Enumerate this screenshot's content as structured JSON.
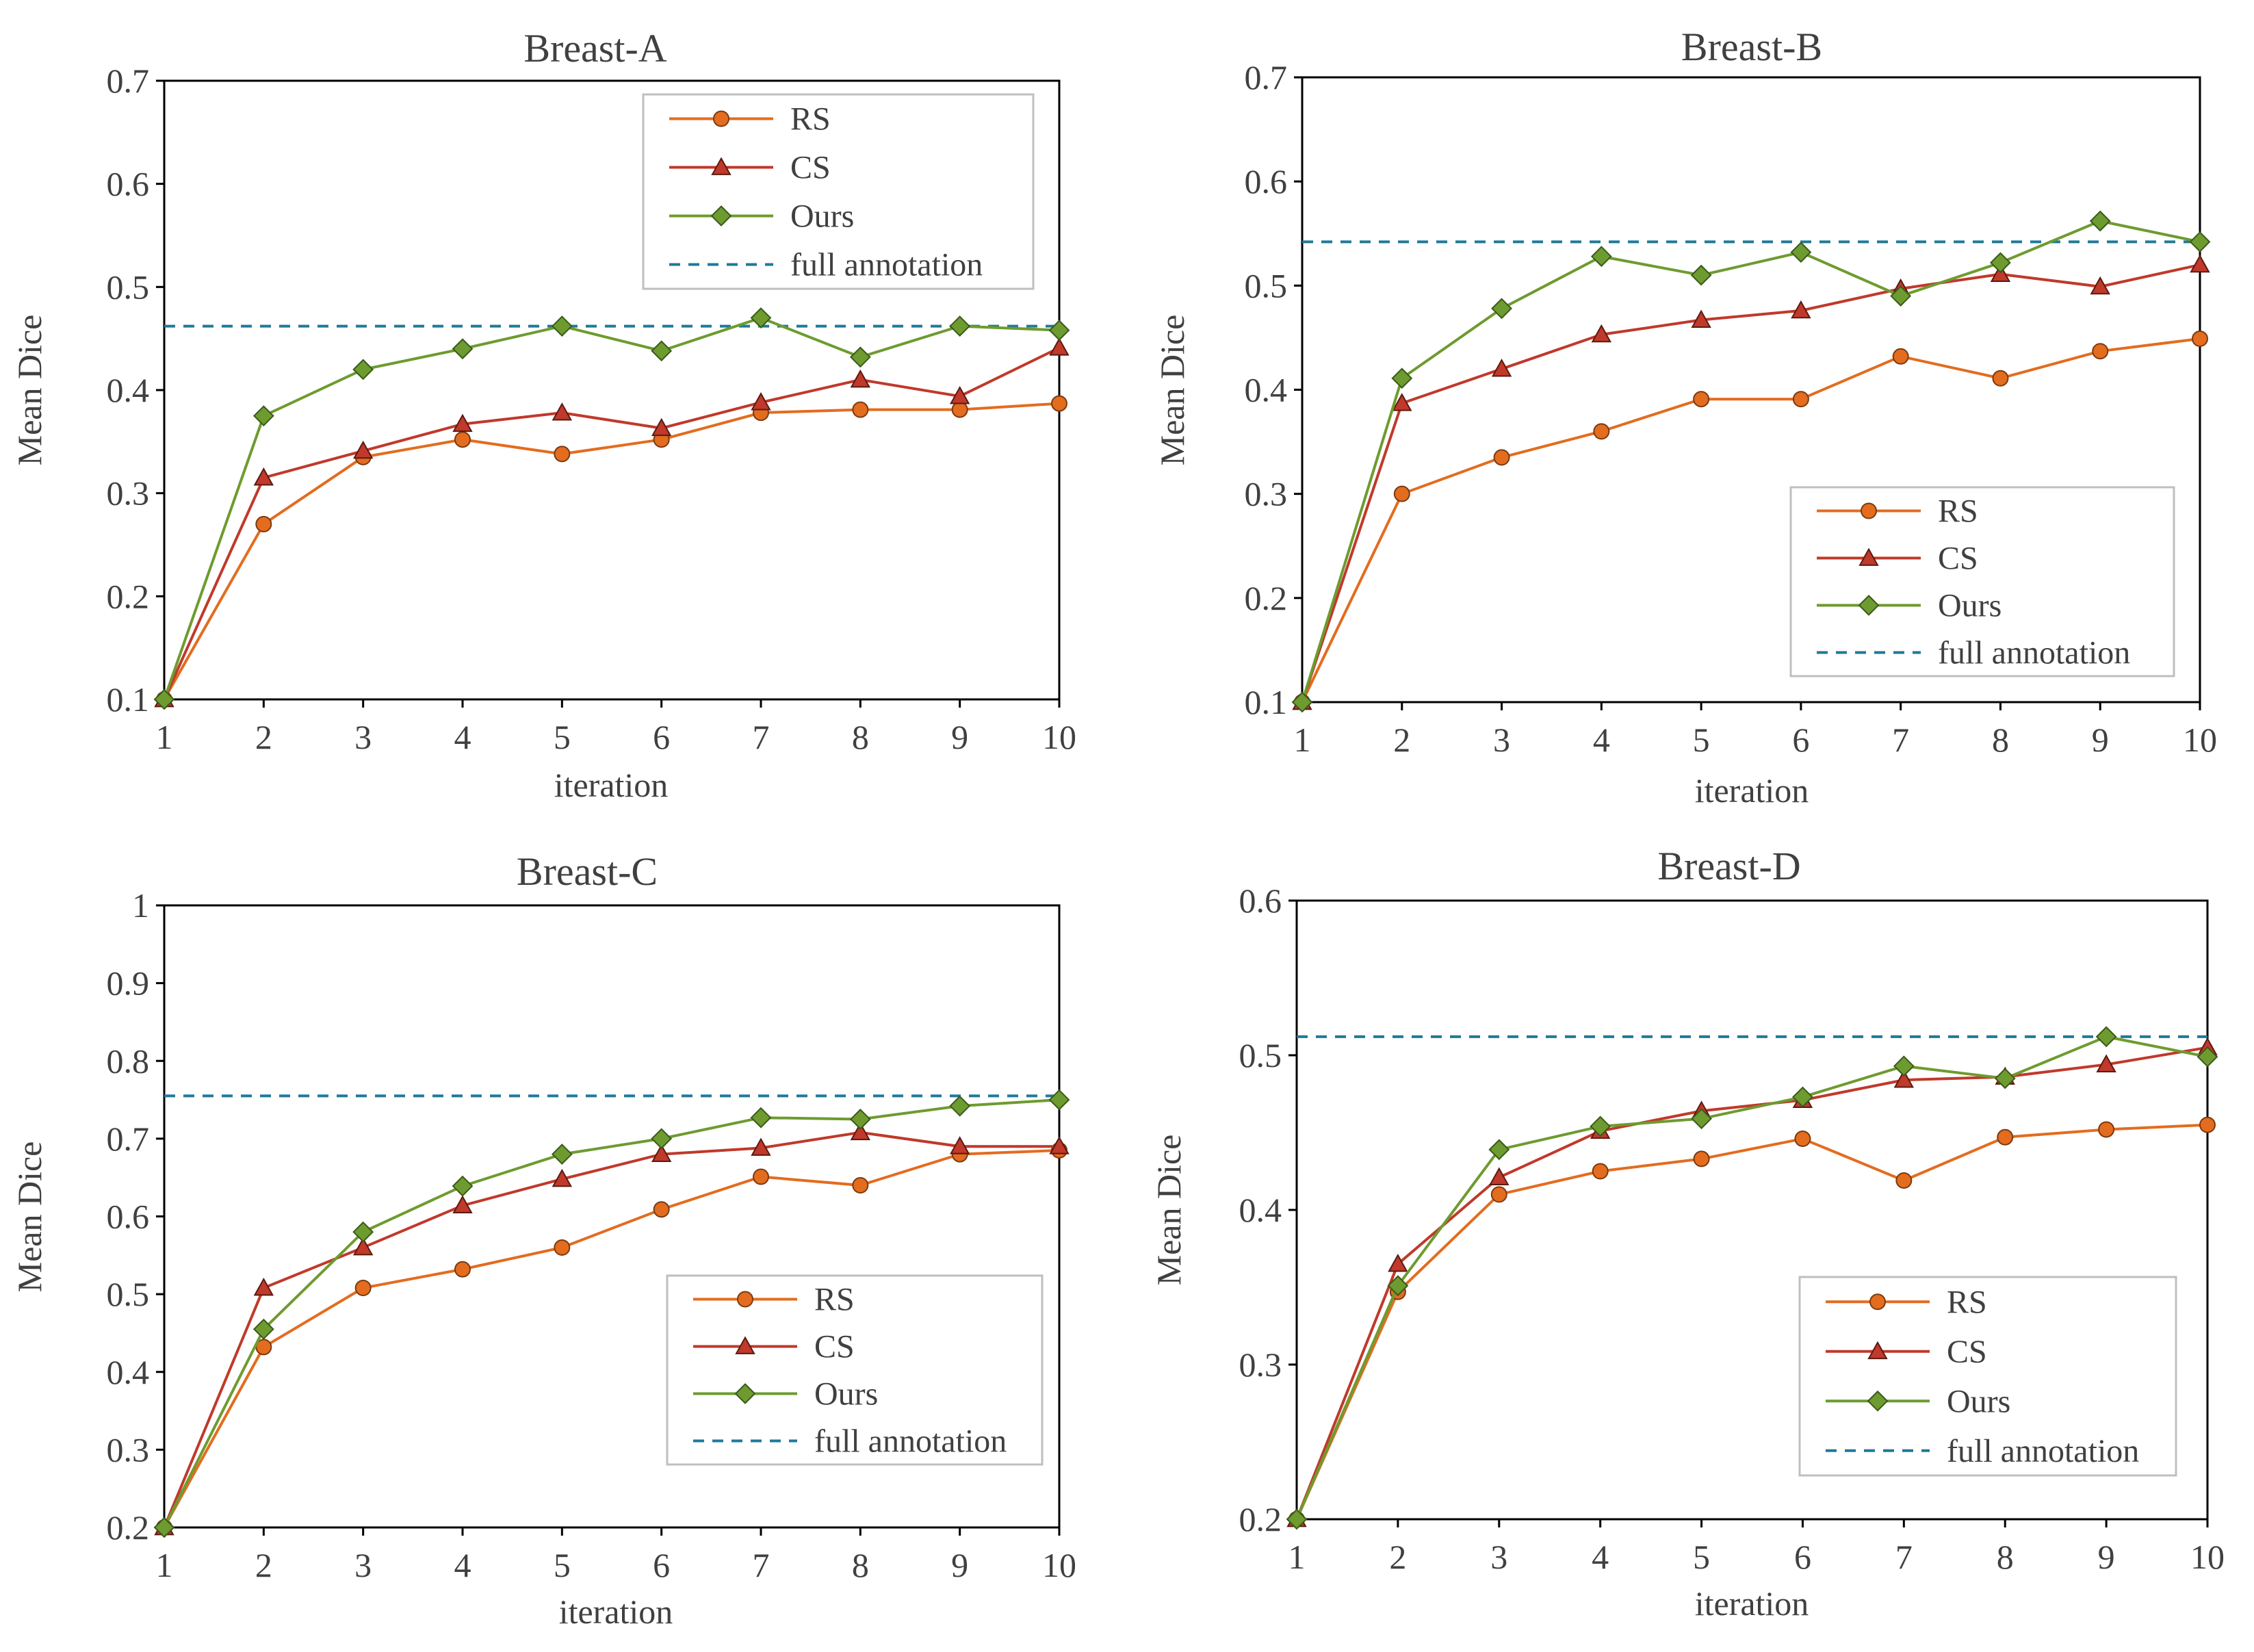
{
  "colors": {
    "RS": "#E36C1F",
    "CS": "#C0392B",
    "Ours": "#6E9B2F",
    "full": "#1F7A99",
    "rs_alt": "#C0504D"
  },
  "chart_data": [
    {
      "type": "line",
      "title": "Breast-A",
      "xlabel": "iteration",
      "ylabel": "Mean Dice",
      "ylim": [
        0.1,
        0.7
      ],
      "yticks": [
        "0.1",
        "0.2",
        "0.3",
        "0.4",
        "0.5",
        "0.6",
        "0.7"
      ],
      "x": [
        1,
        2,
        3,
        4,
        5,
        6,
        7,
        8,
        9,
        10
      ],
      "legend_position": "top-right",
      "series": [
        {
          "name": "RS",
          "values": [
            0.1,
            0.27,
            0.335,
            0.352,
            0.338,
            0.352,
            0.378,
            0.381,
            0.381,
            0.387
          ]
        },
        {
          "name": "CS",
          "values": [
            0.1,
            0.315,
            0.341,
            0.367,
            0.378,
            0.363,
            0.388,
            0.41,
            0.394,
            0.441
          ]
        },
        {
          "name": "Ours",
          "values": [
            0.1,
            0.375,
            0.42,
            0.44,
            0.462,
            0.438,
            0.47,
            0.432,
            0.462,
            0.458
          ]
        }
      ],
      "reference": {
        "name": "full annotation",
        "value": 0.462
      }
    },
    {
      "type": "line",
      "title": "Breast-B",
      "xlabel": "iteration",
      "ylabel": "Mean Dice",
      "ylim": [
        0.1,
        0.7
      ],
      "yticks": [
        "0.1",
        "0.2",
        "0.3",
        "0.4",
        "0.5",
        "0.6",
        "0.7"
      ],
      "x": [
        1,
        2,
        3,
        4,
        5,
        6,
        7,
        8,
        9,
        10
      ],
      "legend_position": "bottom-right",
      "series": [
        {
          "name": "RS",
          "values": [
            0.1,
            0.3,
            0.335,
            0.36,
            0.391,
            0.391,
            0.432,
            0.411,
            0.437,
            0.449
          ]
        },
        {
          "name": "CS",
          "values": [
            0.1,
            0.387,
            0.42,
            0.453,
            0.467,
            0.476,
            0.497,
            0.511,
            0.499,
            0.52
          ]
        },
        {
          "name": "Ours",
          "values": [
            0.1,
            0.411,
            0.478,
            0.528,
            0.51,
            0.532,
            0.49,
            0.522,
            0.562,
            0.542
          ]
        }
      ],
      "reference": {
        "name": "full annotation",
        "value": 0.542
      }
    },
    {
      "type": "line",
      "title": "Breast-C",
      "xlabel": "iteration",
      "ylabel": "Mean Dice",
      "ylim": [
        0.2,
        1.0
      ],
      "yticks": [
        "0.2",
        "0.3",
        "0.4",
        "0.5",
        "0.6",
        "0.7",
        "0.8",
        "0.9",
        "1"
      ],
      "x": [
        1,
        2,
        3,
        4,
        5,
        6,
        7,
        8,
        9,
        10
      ],
      "legend_position": "bottom-right",
      "series": [
        {
          "name": "RS",
          "values": [
            0.2,
            0.432,
            0.508,
            0.532,
            0.56,
            0.609,
            0.651,
            0.64,
            0.68,
            0.685
          ]
        },
        {
          "name": "CS",
          "values": [
            0.2,
            0.508,
            0.56,
            0.614,
            0.648,
            0.68,
            0.688,
            0.708,
            0.69,
            0.69
          ]
        },
        {
          "name": "Ours",
          "values": [
            0.2,
            0.455,
            0.58,
            0.639,
            0.68,
            0.7,
            0.727,
            0.725,
            0.742,
            0.75
          ]
        }
      ],
      "reference": {
        "name": "full annotation",
        "value": 0.755
      }
    },
    {
      "type": "line",
      "title": "Breast-D",
      "xlabel": "iteration",
      "ylabel": "Mean Dice",
      "ylim": [
        0.2,
        0.6
      ],
      "yticks": [
        "0.2",
        "0.3",
        "0.4",
        "0.5",
        "0.6"
      ],
      "x": [
        1,
        2,
        3,
        4,
        5,
        6,
        7,
        8,
        9,
        10
      ],
      "legend_position": "bottom-right",
      "series": [
        {
          "name": "RS",
          "values": [
            0.2,
            0.347,
            0.41,
            0.425,
            0.433,
            0.446,
            0.419,
            0.447,
            0.452,
            0.455
          ]
        },
        {
          "name": "CS",
          "values": [
            0.2,
            0.365,
            0.421,
            0.451,
            0.464,
            0.471,
            0.484,
            0.486,
            0.494,
            0.505
          ]
        },
        {
          "name": "Ours",
          "values": [
            0.2,
            0.351,
            0.439,
            0.454,
            0.459,
            0.473,
            0.493,
            0.485,
            0.512,
            0.499
          ]
        }
      ],
      "reference": {
        "name": "full annotation",
        "value": 0.512
      }
    }
  ]
}
